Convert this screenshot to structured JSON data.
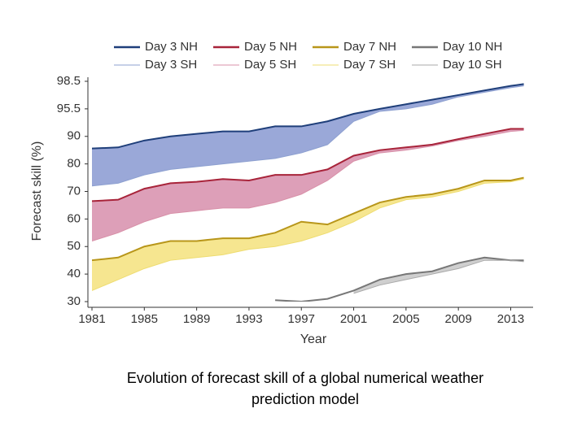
{
  "chart_data": {
    "type": "line",
    "x": [
      1981,
      1983,
      1985,
      1987,
      1989,
      1991,
      1993,
      1995,
      1997,
      1999,
      2001,
      2003,
      2005,
      2007,
      2009,
      2011,
      2013,
      2014
    ],
    "series": [
      {
        "name": "Day 3 NH",
        "color": "#1f3f7a",
        "fill": "#9aa8d8",
        "values": [
          85.6,
          86,
          88.5,
          90,
          90.5,
          91,
          91,
          92,
          92,
          93,
          94.5,
          95.5,
          96,
          96.5,
          97,
          97.5,
          98,
          98.2
        ]
      },
      {
        "name": "Day 3 SH",
        "color": "#8da0d0",
        "values": [
          72,
          73,
          76,
          78,
          79,
          80,
          81,
          82,
          84,
          87,
          93,
          95,
          95.5,
          96,
          96.8,
          97.3,
          97.8,
          98
        ]
      },
      {
        "name": "Day 5 NH",
        "color": "#a8243a",
        "fill": "#dd9fb8",
        "values": [
          66.5,
          67,
          71,
          73,
          73.5,
          74.5,
          74,
          76,
          76,
          78,
          83,
          85,
          86,
          87,
          89,
          90.5,
          91.5,
          91.5
        ]
      },
      {
        "name": "Day 5 SH",
        "color": "#d890a8",
        "values": [
          52,
          55,
          59,
          62,
          63,
          64,
          64,
          66,
          69,
          74,
          81,
          84,
          85,
          86.5,
          88.5,
          90,
          91,
          91.2
        ]
      },
      {
        "name": "Day 7 NH",
        "color": "#b8961a",
        "fill": "#f6e690",
        "values": [
          45,
          46,
          50,
          52,
          52,
          53,
          53,
          55,
          59,
          58,
          62,
          66,
          68,
          69,
          71,
          74,
          74,
          75
        ]
      },
      {
        "name": "Day 7 SH",
        "color": "#eedc70",
        "values": [
          34,
          38,
          42,
          45,
          46,
          47,
          49,
          50,
          52,
          55,
          59,
          64,
          67,
          68,
          70,
          73,
          73.5,
          74.5
        ]
      },
      {
        "name": "Day 10 NH",
        "color": "#777777",
        "fill": "#cfcfcf",
        "values": [
          null,
          null,
          null,
          null,
          null,
          null,
          null,
          30.5,
          30,
          31,
          34,
          38,
          40,
          41,
          44,
          46,
          45,
          45
        ]
      },
      {
        "name": "Day 10 SH",
        "color": "#aaaaaa",
        "values": [
          null,
          null,
          null,
          null,
          null,
          null,
          null,
          null,
          null,
          null,
          33,
          36,
          38,
          40,
          42,
          45,
          45,
          44.5
        ]
      }
    ],
    "xlabel": "Year",
    "ylabel": "Forecast skill (%)",
    "xlim": [
      1981,
      2014.4
    ],
    "xticks": [
      1981,
      1985,
      1989,
      1993,
      1997,
      2001,
      2005,
      2009,
      2013
    ],
    "ylim": [
      30,
      98.5
    ],
    "yticks": [
      30,
      40,
      50,
      60,
      70,
      80,
      90,
      95.5,
      98.5
    ],
    "caption": "Evolution of forecast skill of a global numerical weather prediction model"
  }
}
